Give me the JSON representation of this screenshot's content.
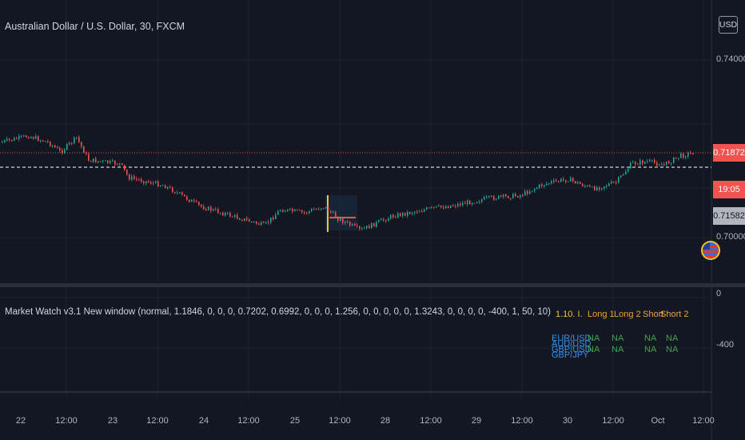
{
  "header": {
    "symbol_title": "Australian Dollar / U.S. Dollar, 30, FXCM",
    "currency_button": "USD"
  },
  "price_scale": {
    "ticks": [
      "0.74000",
      "0.70000"
    ],
    "last_price": "0.71872",
    "countdown": "19:05",
    "crosshair_price": "0.71582"
  },
  "indicator": {
    "label": "Market Watch v3.1 New window (normal, 1.1846, 0, 0, 0, 0.7202, 0.6992, 0, 0, 0, 1.256, 0, 0, 0, 0, 0, 1.3243, 0, 0, 0, 0, -400, 1, 50, 10)",
    "scale_ticks": [
      "0",
      "-400"
    ],
    "table": {
      "version": "1.10. I.",
      "col_long1": "Long 1",
      "col_long2": "Long 2",
      "col_short1": "Short",
      "col_short2": "Short 2",
      "symbols": [
        "EUR/USD",
        "AUD/USD",
        "GBP/USD",
        "GBP/JPY"
      ],
      "cell_text": "NA"
    }
  },
  "time_axis": {
    "labels": [
      "22",
      "12:00",
      "23",
      "12:00",
      "24",
      "12:00",
      "25",
      "12:00",
      "28",
      "12:00",
      "29",
      "12:00",
      "30",
      "12:00",
      "Oct",
      "12:00"
    ]
  },
  "colors": {
    "background": "#131722",
    "up_candle": "#26a69a",
    "down_candle": "#ef5350",
    "badge_red": "#f05350",
    "table_header": "#f0a030",
    "table_symbol": "#3a8fe6",
    "table_value": "#3fa64b"
  }
}
